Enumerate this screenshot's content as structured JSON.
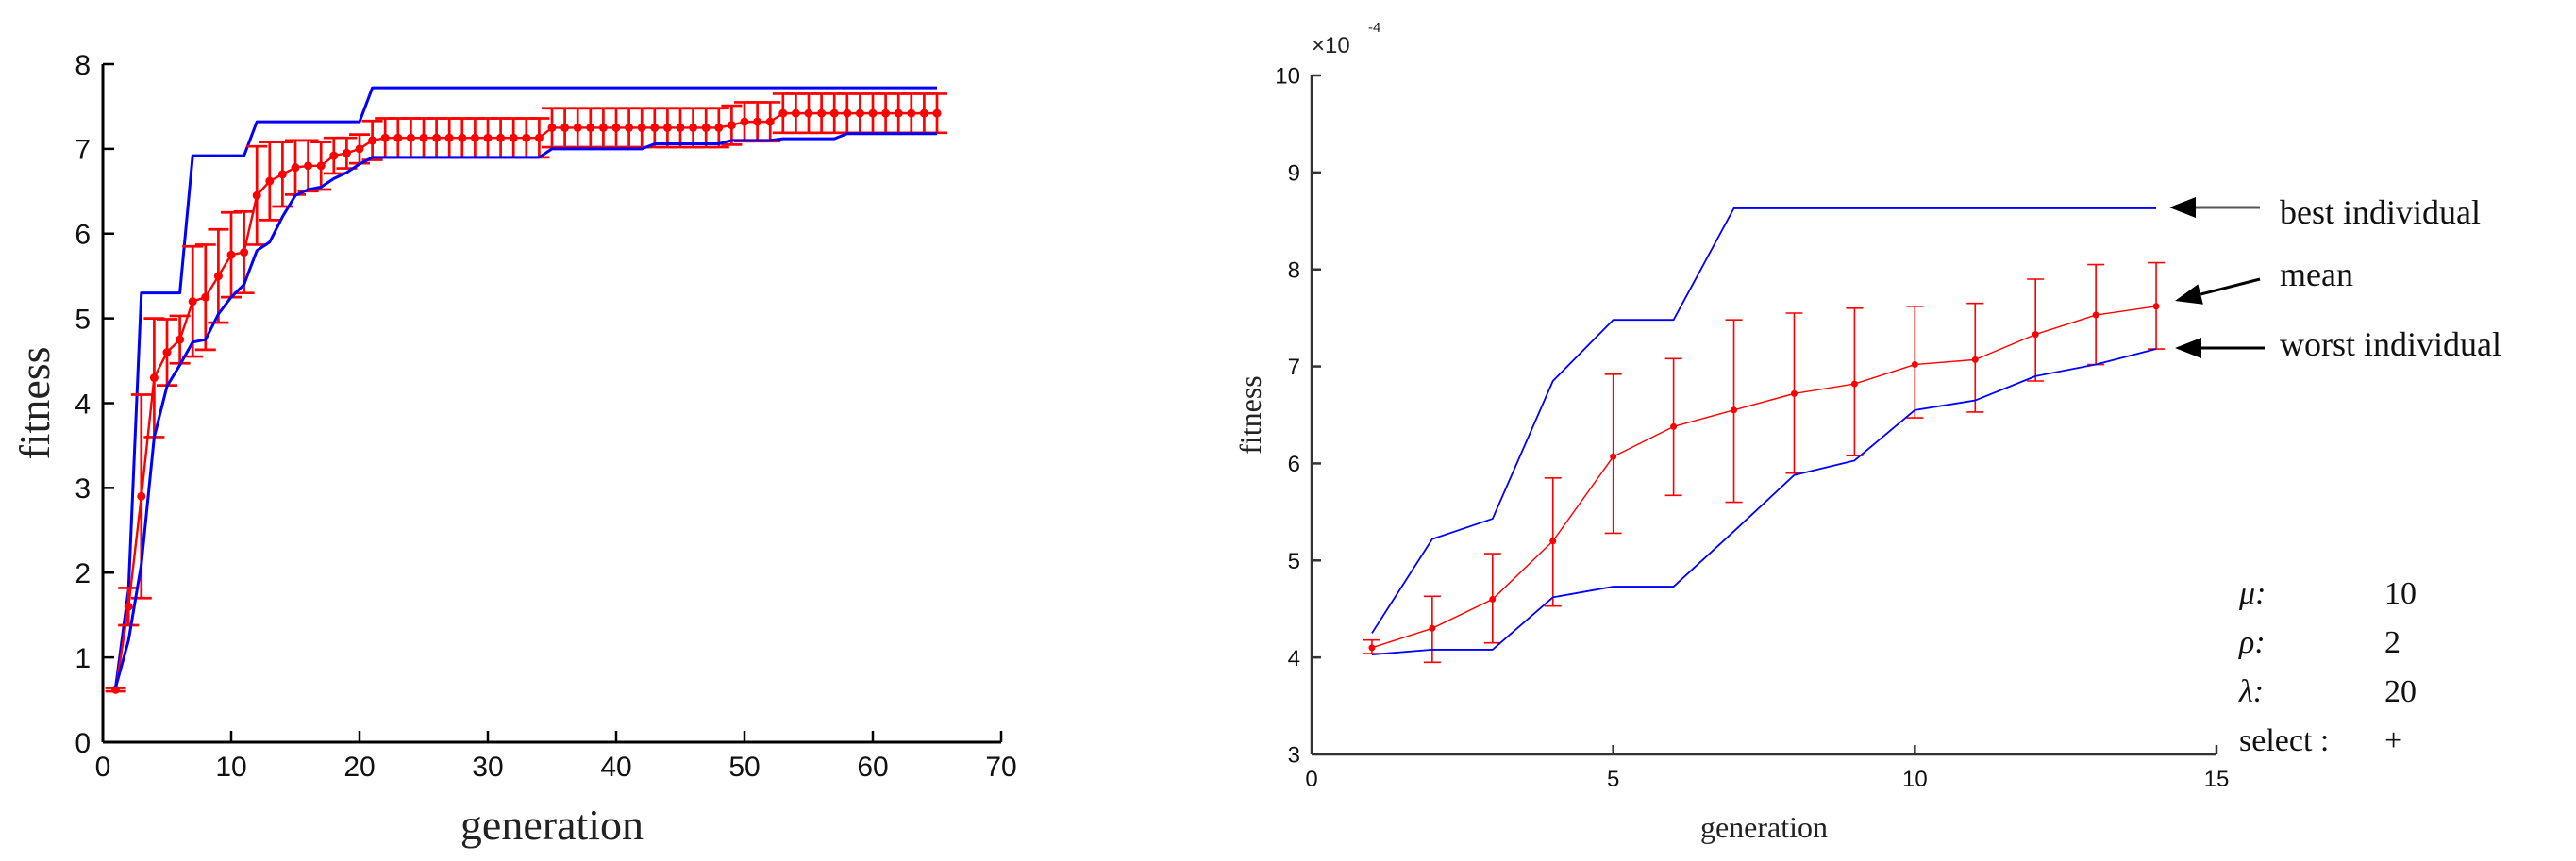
{
  "colors": {
    "best": "#0000ff",
    "worst": "#0000ff",
    "mean": "#ff0000",
    "axis": "#000000",
    "annotation": "#000000"
  },
  "chart_data": [
    {
      "type": "line",
      "title": "",
      "xlabel": "generation",
      "ylabel": "fitness",
      "xlim": [
        0,
        70
      ],
      "ylim": [
        0,
        8
      ],
      "xticks": [
        0,
        10,
        20,
        30,
        40,
        50,
        60,
        70
      ],
      "yticks": [
        0,
        1,
        2,
        3,
        4,
        5,
        6,
        7,
        8
      ],
      "grid": false,
      "x": [
        1,
        2,
        3,
        4,
        5,
        6,
        7,
        8,
        9,
        10,
        11,
        12,
        13,
        14,
        15,
        16,
        17,
        18,
        19,
        20,
        21,
        22,
        23,
        24,
        25,
        26,
        27,
        28,
        29,
        30,
        31,
        32,
        33,
        34,
        35,
        36,
        37,
        38,
        39,
        40,
        41,
        42,
        43,
        44,
        45,
        46,
        47,
        48,
        49,
        50,
        51,
        52,
        53,
        54,
        55,
        56,
        57,
        58,
        59,
        60,
        61,
        62,
        63,
        64,
        65
      ],
      "series": [
        {
          "name": "best individual",
          "color": "#0000ff",
          "values": [
            0.65,
            1.8,
            5.3,
            5.3,
            5.3,
            5.3,
            6.92,
            6.92,
            6.92,
            6.92,
            6.92,
            7.32,
            7.32,
            7.32,
            7.32,
            7.32,
            7.32,
            7.32,
            7.32,
            7.32,
            7.72,
            7.72,
            7.72,
            7.72,
            7.72,
            7.72,
            7.72,
            7.72,
            7.72,
            7.72,
            7.72,
            7.72,
            7.72,
            7.72,
            7.72,
            7.72,
            7.72,
            7.72,
            7.72,
            7.72,
            7.72,
            7.72,
            7.72,
            7.72,
            7.72,
            7.72,
            7.72,
            7.72,
            7.72,
            7.72,
            7.72,
            7.72,
            7.72,
            7.72,
            7.72,
            7.72,
            7.72,
            7.72,
            7.72,
            7.72,
            7.72,
            7.72,
            7.72,
            7.72,
            7.72
          ]
        },
        {
          "name": "mean",
          "color": "#ff0000",
          "values": [
            0.62,
            1.6,
            2.9,
            4.3,
            4.6,
            4.75,
            5.2,
            5.25,
            5.5,
            5.75,
            5.78,
            6.45,
            6.62,
            6.7,
            6.78,
            6.8,
            6.8,
            6.92,
            6.95,
            7.0,
            7.1,
            7.13,
            7.13,
            7.13,
            7.13,
            7.13,
            7.13,
            7.13,
            7.13,
            7.13,
            7.13,
            7.13,
            7.13,
            7.13,
            7.25,
            7.25,
            7.25,
            7.25,
            7.25,
            7.25,
            7.25,
            7.25,
            7.25,
            7.25,
            7.25,
            7.25,
            7.25,
            7.25,
            7.28,
            7.32,
            7.32,
            7.32,
            7.42,
            7.42,
            7.42,
            7.42,
            7.42,
            7.42,
            7.42,
            7.42,
            7.42,
            7.42,
            7.42,
            7.42,
            7.42
          ],
          "error": [
            0.02,
            0.22,
            1.2,
            0.7,
            0.39,
            0.28,
            0.65,
            0.62,
            0.55,
            0.5,
            0.48,
            0.58,
            0.46,
            0.38,
            0.32,
            0.3,
            0.28,
            0.21,
            0.18,
            0.17,
            0.23,
            0.23,
            0.23,
            0.23,
            0.23,
            0.23,
            0.23,
            0.23,
            0.23,
            0.23,
            0.23,
            0.23,
            0.23,
            0.23,
            0.23,
            0.23,
            0.23,
            0.23,
            0.23,
            0.23,
            0.23,
            0.23,
            0.23,
            0.23,
            0.23,
            0.23,
            0.23,
            0.23,
            0.23,
            0.23,
            0.23,
            0.23,
            0.23,
            0.23,
            0.23,
            0.23,
            0.23,
            0.23,
            0.23,
            0.23,
            0.23,
            0.23,
            0.23,
            0.23,
            0.23
          ]
        },
        {
          "name": "worst individual",
          "color": "#0000ff",
          "values": [
            0.65,
            1.2,
            2.1,
            3.6,
            4.2,
            4.45,
            4.72,
            4.75,
            5.05,
            5.25,
            5.4,
            5.8,
            5.9,
            6.2,
            6.45,
            6.52,
            6.55,
            6.65,
            6.72,
            6.82,
            6.9,
            6.9,
            6.9,
            6.9,
            6.9,
            6.9,
            6.9,
            6.9,
            6.9,
            6.9,
            6.9,
            6.9,
            6.9,
            6.9,
            7.0,
            7.0,
            7.0,
            7.0,
            7.0,
            7.0,
            7.0,
            7.0,
            7.06,
            7.06,
            7.06,
            7.06,
            7.06,
            7.06,
            7.1,
            7.1,
            7.1,
            7.1,
            7.12,
            7.12,
            7.12,
            7.12,
            7.12,
            7.18,
            7.18,
            7.18,
            7.18,
            7.18,
            7.18,
            7.18,
            7.18
          ]
        }
      ]
    },
    {
      "type": "line",
      "title": "",
      "xlabel": "generation",
      "ylabel": "fitness",
      "y_multiplier": {
        "base": "×10",
        "exponent": "-4"
      },
      "xlim": [
        0,
        15
      ],
      "ylim": [
        3,
        10
      ],
      "xticks": [
        0,
        5,
        10,
        15
      ],
      "yticks": [
        3,
        4,
        5,
        6,
        7,
        8,
        9,
        10
      ],
      "grid": false,
      "x": [
        1,
        2,
        3,
        4,
        5,
        6,
        7,
        8,
        9,
        10,
        11,
        12,
        13,
        14
      ],
      "series": [
        {
          "name": "best individual",
          "color": "#0000ff",
          "values": [
            4.25,
            5.22,
            5.43,
            6.85,
            7.48,
            7.48,
            8.63,
            8.63,
            8.63,
            8.63,
            8.63,
            8.63,
            8.63,
            8.63
          ]
        },
        {
          "name": "mean",
          "color": "#ff0000",
          "values": [
            4.1,
            4.3,
            4.6,
            5.2,
            6.07,
            6.38,
            6.55,
            6.72,
            6.82,
            7.02,
            7.07,
            7.33,
            7.53,
            7.62
          ],
          "error_low": [
            4.04,
            3.95,
            4.15,
            4.53,
            5.28,
            5.67,
            5.6,
            5.9,
            6.08,
            6.47,
            6.53,
            6.85,
            7.02,
            7.18
          ],
          "error_high": [
            4.18,
            4.63,
            5.07,
            5.85,
            6.92,
            7.08,
            7.48,
            7.55,
            7.6,
            7.62,
            7.65,
            7.9,
            8.05,
            8.07
          ]
        },
        {
          "name": "worst individual",
          "color": "#0000ff",
          "values": [
            4.03,
            4.08,
            4.08,
            4.62,
            4.73,
            4.73,
            5.3,
            5.88,
            6.03,
            6.55,
            6.65,
            6.9,
            7.02,
            7.18
          ]
        }
      ],
      "annotations": [
        "best individual",
        "mean",
        "worst individual"
      ],
      "parameters": [
        {
          "label": "μ:",
          "value": "10"
        },
        {
          "label": "ρ:",
          "value": "2"
        },
        {
          "label": "λ:",
          "value": "20"
        },
        {
          "label": "select :",
          "value": "+"
        }
      ]
    }
  ]
}
